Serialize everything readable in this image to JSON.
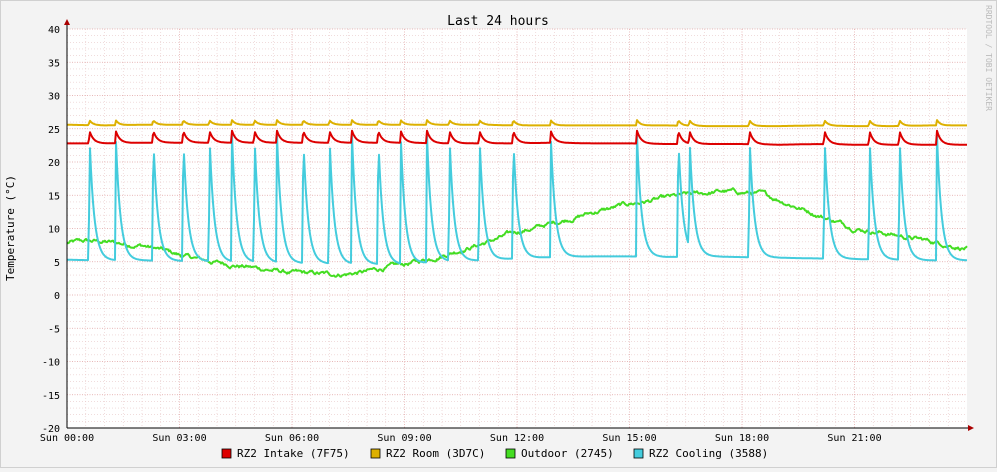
{
  "chart_data": {
    "type": "line",
    "title": "Last 24 hours",
    "ylabel": "Temperature (°C)",
    "watermark": "RRDTOOL / TOBI OETIKER",
    "xlim": [
      0,
      24
    ],
    "ylim": [
      -20,
      40
    ],
    "y_ticks": [
      -20,
      -15,
      -10,
      -5,
      0,
      5,
      10,
      15,
      20,
      25,
      30,
      35,
      40
    ],
    "x_ticks": [
      {
        "hour": 0,
        "label": "Sun 00:00"
      },
      {
        "hour": 3,
        "label": "Sun 03:00"
      },
      {
        "hour": 6,
        "label": "Sun 06:00"
      },
      {
        "hour": 9,
        "label": "Sun 09:00"
      },
      {
        "hour": 12,
        "label": "Sun 12:00"
      },
      {
        "hour": 15,
        "label": "Sun 15:00"
      },
      {
        "hour": 18,
        "label": "Sun 18:00"
      },
      {
        "hour": 21,
        "label": "Sun 21:00"
      }
    ],
    "grid": true,
    "legend_position": "bottom",
    "cycle_hours": [
      0.6,
      1.3,
      2.3,
      3.1,
      3.8,
      4.4,
      5.0,
      5.6,
      6.3,
      7.0,
      7.6,
      8.3,
      8.9,
      9.6,
      10.2,
      11.0,
      11.9,
      12.9,
      15.2,
      16.3,
      16.6,
      18.2,
      20.2,
      21.4,
      22.2,
      23.2
    ],
    "series": [
      {
        "name": "RZ2 Intake (7F75)",
        "color": "#dd0000",
        "x": [
          0,
          1,
          2,
          3,
          4,
          5,
          6,
          7,
          8,
          9,
          10,
          11,
          12,
          13,
          14,
          15,
          16,
          17,
          18,
          19,
          20,
          21,
          22,
          23,
          24
        ],
        "y": [
          22.8,
          22.8,
          22.9,
          22.9,
          22.9,
          22.9,
          22.9,
          22.9,
          22.9,
          22.9,
          22.8,
          22.8,
          22.8,
          22.9,
          22.8,
          22.8,
          22.7,
          22.7,
          22.7,
          22.6,
          22.7,
          22.6,
          22.6,
          22.6,
          22.6
        ],
        "spike_peak": 24.7,
        "spike_decay_hours": 0.3
      },
      {
        "name": "RZ2 Room (3D7C)",
        "color": "#ddb000",
        "x": [
          0,
          1,
          2,
          3,
          4,
          5,
          6,
          7,
          8,
          9,
          10,
          11,
          12,
          13,
          14,
          15,
          16,
          17,
          18,
          19,
          20,
          21,
          22,
          23,
          24
        ],
        "y": [
          25.6,
          25.5,
          25.6,
          25.6,
          25.6,
          25.6,
          25.6,
          25.6,
          25.6,
          25.6,
          25.6,
          25.6,
          25.5,
          25.5,
          25.5,
          25.5,
          25.5,
          25.4,
          25.4,
          25.4,
          25.5,
          25.4,
          25.4,
          25.5,
          25.5
        ],
        "spike_peak": 26.3,
        "spike_decay_hours": 0.25
      },
      {
        "name": "Outdoor (2745)",
        "color": "#44dd22",
        "x": [
          0,
          0.5,
          1,
          1.5,
          2,
          2.5,
          3,
          3.5,
          4,
          4.5,
          5,
          5.5,
          6,
          6.5,
          7,
          7.5,
          8,
          8.5,
          9,
          9.5,
          10,
          10.5,
          11,
          11.5,
          12,
          12.5,
          13,
          13.5,
          14,
          14.5,
          15,
          15.5,
          16,
          16.5,
          17,
          17.5,
          18,
          18.5,
          19,
          19.5,
          20,
          20.5,
          21,
          21.5,
          22,
          22.5,
          23,
          23.5,
          24
        ],
        "y": [
          7.8,
          8.1,
          8.0,
          7.7,
          7.5,
          6.8,
          6.0,
          5.4,
          4.9,
          4.5,
          4.1,
          3.7,
          3.3,
          3.2,
          3.1,
          3.2,
          3.5,
          4.1,
          4.6,
          5.2,
          6.0,
          6.8,
          7.6,
          8.5,
          9.5,
          10.1,
          10.9,
          11.6,
          12.4,
          13.0,
          13.7,
          14.1,
          14.6,
          15.0,
          15.3,
          15.6,
          15.4,
          15.2,
          14.3,
          13.2,
          12.1,
          11.1,
          10.1,
          9.6,
          9.1,
          8.6,
          8.1,
          7.6,
          7.0
        ],
        "noise": 0.45
      },
      {
        "name": "RZ2 Cooling (3588)",
        "color": "#44ccdd",
        "x": [
          0,
          1,
          2,
          3,
          4,
          5,
          6,
          7,
          8,
          9,
          10,
          11,
          12,
          13,
          14,
          15,
          16,
          17,
          18,
          19,
          20,
          21,
          22,
          23,
          24
        ],
        "y": [
          5.3,
          5.2,
          5.2,
          5.1,
          5.0,
          4.9,
          4.8,
          4.7,
          4.6,
          4.6,
          5.0,
          5.2,
          5.5,
          5.7,
          5.8,
          5.8,
          5.7,
          5.8,
          5.7,
          5.6,
          5.5,
          5.4,
          5.3,
          5.2,
          5.2
        ],
        "spike_peak": 24.0,
        "spike_decay_hours": 0.35
      }
    ]
  }
}
